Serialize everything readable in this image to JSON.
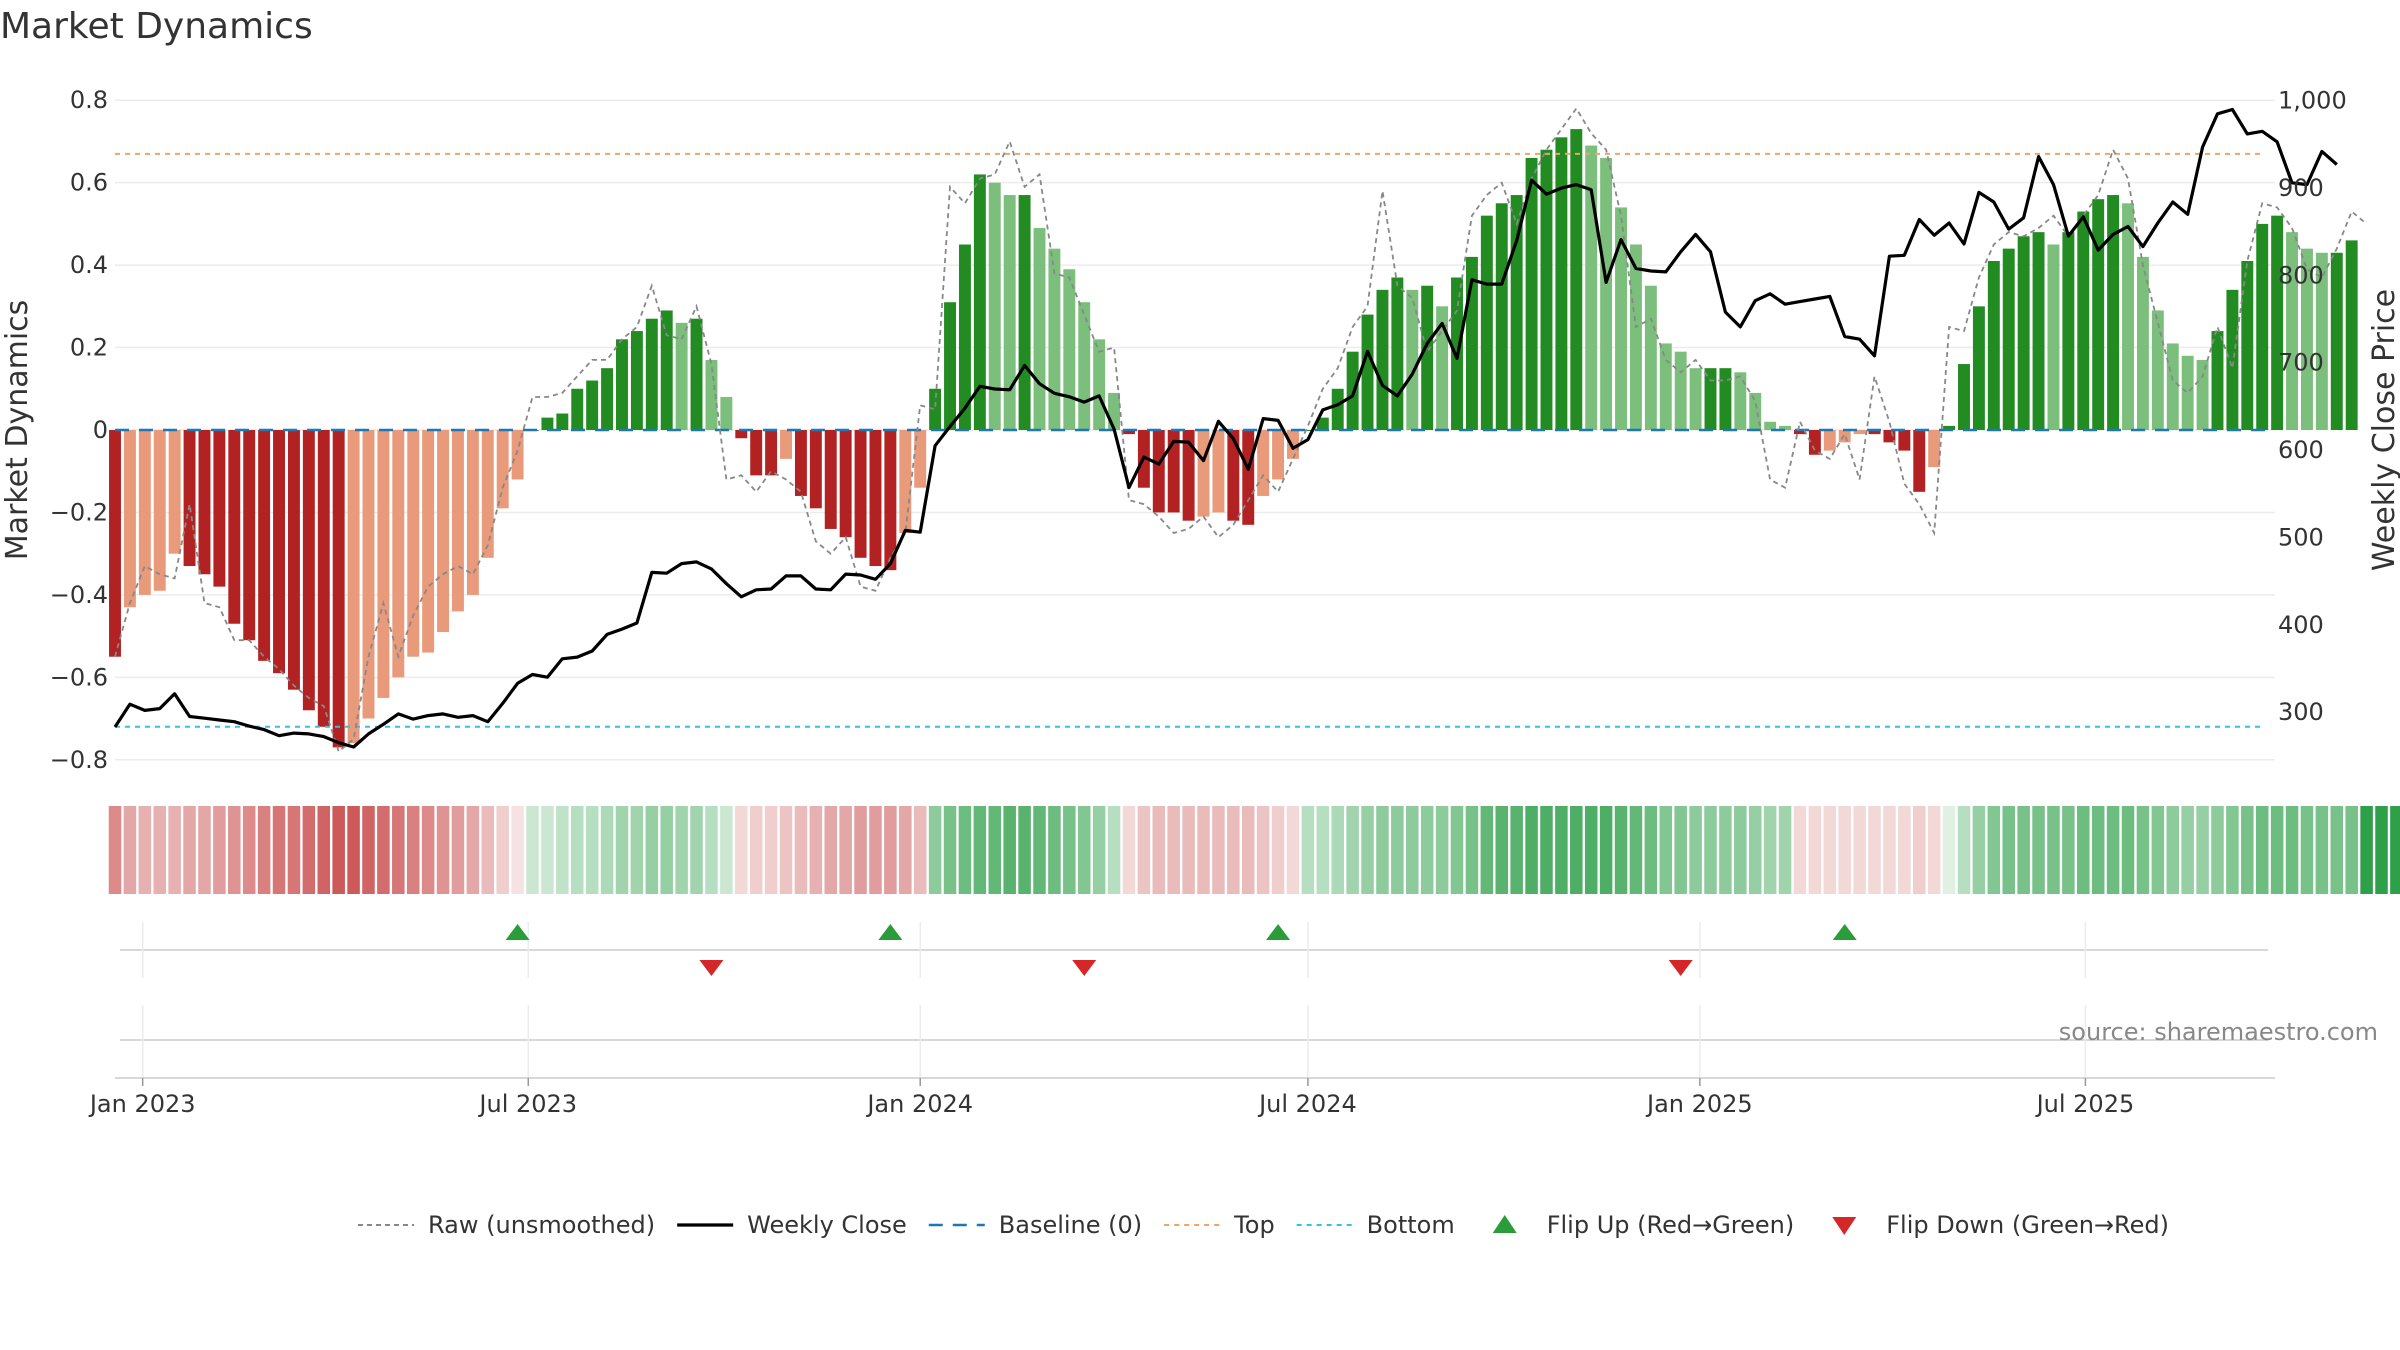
{
  "chart_data": {
    "type": "bar",
    "title": "Market Dynamics",
    "ylabel": "Market Dynamics",
    "y2label": "Weekly Close Price",
    "ylim": [
      -0.82,
      0.82
    ],
    "y2lim": [
      236,
      1010
    ],
    "x_ticks": [
      "Jan 2023",
      "Jul 2023",
      "Jan 2024",
      "Jul 2024",
      "Jan 2025",
      "Jul 2025"
    ],
    "x_tick_dates": [
      "2023-01-01",
      "2023-07-01",
      "2024-01-01",
      "2024-07-01",
      "2025-01-01",
      "2025-07-01"
    ],
    "x_start": "2022-12-19",
    "x_end": "2025-09-28",
    "y_ticks": [
      0.8,
      0.6,
      0.4,
      0.2,
      0,
      -0.2,
      -0.4,
      -0.6,
      -0.8
    ],
    "y_tick_labels": [
      "0.8",
      "0.6",
      "0.4",
      "0.2",
      "0",
      "−0.2",
      "−0.4",
      "−0.6",
      "−0.8"
    ],
    "y2_ticks": [
      1000,
      900,
      800,
      700,
      600,
      500,
      400,
      300
    ],
    "y2_tick_labels": [
      "1,000",
      "900",
      "800",
      "700",
      "600",
      "500",
      "400",
      "300"
    ],
    "top_level": 0.67,
    "bottom_level": -0.72,
    "grid": true,
    "legend_position": "bottom",
    "series": [
      {
        "name": "Raw (unsmoothed)",
        "type": "line",
        "color": "#888888"
      },
      {
        "name": "Weekly Close",
        "type": "line",
        "color": "#000000"
      },
      {
        "name": "Baseline (0)",
        "type": "line",
        "color": "#1f77b4"
      },
      {
        "name": "Top",
        "type": "line",
        "color": "#f4a261"
      },
      {
        "name": "Bottom",
        "type": "line",
        "color": "#2ec4e0"
      },
      {
        "name": "Flip Up (Red→Green)",
        "type": "marker",
        "color": "#2a9d3a"
      },
      {
        "name": "Flip Down (Green→Red)",
        "type": "marker",
        "color": "#d62728"
      }
    ],
    "weekly_start": "2022-12-19",
    "momentum": [
      -0.55,
      -0.43,
      -0.4,
      -0.39,
      -0.3,
      -0.33,
      -0.35,
      -0.38,
      -0.47,
      -0.51,
      -0.56,
      -0.59,
      -0.63,
      -0.68,
      -0.72,
      -0.77,
      -0.76,
      -0.7,
      -0.65,
      -0.6,
      -0.55,
      -0.54,
      -0.49,
      -0.44,
      -0.4,
      -0.31,
      -0.19,
      -0.12,
      0.0,
      0.03,
      0.04,
      0.1,
      0.12,
      0.15,
      0.22,
      0.24,
      0.27,
      0.29,
      0.26,
      0.27,
      0.17,
      0.08,
      -0.02,
      -0.11,
      -0.11,
      -0.07,
      -0.16,
      -0.19,
      -0.24,
      -0.26,
      -0.31,
      -0.33,
      -0.34,
      -0.25,
      -0.14,
      0.1,
      0.31,
      0.45,
      0.62,
      0.6,
      0.57,
      0.57,
      0.49,
      0.44,
      0.39,
      0.31,
      0.22,
      0.09,
      -0.01,
      -0.14,
      -0.2,
      -0.2,
      -0.22,
      -0.21,
      -0.2,
      -0.22,
      -0.23,
      -0.16,
      -0.12,
      -0.07,
      0.0,
      0.03,
      0.1,
      0.19,
      0.28,
      0.34,
      0.37,
      0.34,
      0.35,
      0.3,
      0.37,
      0.42,
      0.52,
      0.55,
      0.57,
      0.66,
      0.68,
      0.71,
      0.73,
      0.69,
      0.66,
      0.54,
      0.45,
      0.35,
      0.21,
      0.19,
      0.15,
      0.15,
      0.15,
      0.14,
      0.09,
      0.02,
      0.01,
      -0.01,
      -0.06,
      -0.05,
      -0.03,
      -0.01,
      -0.01,
      -0.03,
      -0.05,
      -0.15,
      -0.09,
      0.01,
      0.16,
      0.3,
      0.41,
      0.44,
      0.47,
      0.48,
      0.45,
      0.48,
      0.53,
      0.56,
      0.57,
      0.55,
      0.42,
      0.29,
      0.21,
      0.18,
      0.17,
      0.24,
      0.34,
      0.41,
      0.5,
      0.52,
      0.48,
      0.44,
      0.43,
      0.43,
      0.46
    ],
    "raw": [
      -0.55,
      -0.42,
      -0.33,
      -0.35,
      -0.36,
      -0.18,
      -0.42,
      -0.43,
      -0.51,
      -0.51,
      -0.55,
      -0.58,
      -0.62,
      -0.65,
      -0.67,
      -0.78,
      -0.75,
      -0.55,
      -0.42,
      -0.55,
      -0.45,
      -0.38,
      -0.35,
      -0.33,
      -0.35,
      -0.28,
      -0.14,
      -0.05,
      0.08,
      0.08,
      0.09,
      0.13,
      0.17,
      0.17,
      0.22,
      0.25,
      0.35,
      0.23,
      0.22,
      0.3,
      0.16,
      -0.12,
      -0.11,
      -0.15,
      -0.1,
      -0.12,
      -0.15,
      -0.27,
      -0.3,
      -0.26,
      -0.38,
      -0.39,
      -0.31,
      -0.25,
      0.06,
      0.05,
      0.59,
      0.55,
      0.61,
      0.62,
      0.7,
      0.59,
      0.62,
      0.38,
      0.37,
      0.28,
      0.19,
      0.2,
      -0.17,
      -0.18,
      -0.21,
      -0.25,
      -0.24,
      -0.21,
      -0.26,
      -0.23,
      -0.17,
      -0.11,
      -0.15,
      -0.07,
      0.01,
      0.1,
      0.15,
      0.25,
      0.3,
      0.58,
      0.35,
      0.32,
      0.19,
      0.24,
      0.29,
      0.52,
      0.57,
      0.6,
      0.5,
      0.61,
      0.68,
      0.73,
      0.78,
      0.72,
      0.68,
      0.52,
      0.25,
      0.27,
      0.17,
      0.14,
      0.17,
      0.12,
      0.12,
      0.13,
      0.07,
      -0.12,
      -0.14,
      0.02,
      -0.05,
      -0.07,
      -0.01,
      -0.12,
      0.13,
      0.02,
      -0.13,
      -0.18,
      -0.25,
      0.25,
      0.24,
      0.37,
      0.45,
      0.48,
      0.47,
      0.49,
      0.52,
      0.47,
      0.52,
      0.57,
      0.68,
      0.61,
      0.4,
      0.26,
      0.12,
      0.09,
      0.13,
      0.25,
      0.15,
      0.41,
      0.55,
      0.54,
      0.49,
      0.39,
      0.37,
      0.44,
      0.53,
      0.5
    ],
    "weekly_close": [
      283,
      309,
      302,
      304,
      321,
      295,
      293,
      291,
      289,
      284,
      280,
      273,
      276,
      275,
      272,
      265,
      260,
      275,
      286,
      298,
      292,
      296,
      298,
      294,
      296,
      289,
      310,
      333,
      343,
      340,
      361,
      363,
      370,
      389,
      395,
      402,
      460,
      459,
      470,
      472,
      464,
      447,
      432,
      440,
      441,
      456,
      456,
      441,
      440,
      458,
      457,
      452,
      470,
      508,
      506,
      605,
      627,
      648,
      673,
      670,
      669,
      697,
      676,
      665,
      661,
      655,
      662,
      624,
      557,
      592,
      584,
      610,
      609,
      588,
      633,
      613,
      578,
      636,
      634,
      602,
      612,
      646,
      652,
      662,
      713,
      674,
      662,
      687,
      722,
      745,
      705,
      795,
      790,
      790,
      840,
      909,
      893,
      900,
      904,
      898,
      792,
      841,
      808,
      805,
      804,
      827,
      847,
      827,
      758,
      741,
      771,
      779,
      767,
      770,
      773,
      776,
      730,
      727,
      708,
      822,
      823,
      864,
      846,
      860,
      836,
      895,
      884,
      853,
      866,
      936,
      904,
      845,
      867,
      829,
      847,
      856,
      833,
      860,
      884,
      870,
      947,
      985,
      990,
      962,
      965,
      953,
      906,
      904,
      942,
      927
    ]
  },
  "bands": {
    "colors": [
      "#c43c3c",
      "#c43c3c",
      "#c43c3c",
      "#c43c3c",
      "#c43c3c",
      "#c43c3c",
      "#c43c3c",
      "#c43c3c",
      "#c43c3c",
      "#c43c3c",
      "#c43c3c",
      "#c43c3c",
      "#c43c3c",
      "#c43c3c",
      "#c43c3c",
      "#c43c3c",
      "#c43c3c",
      "#c43c3c",
      "#c43c3c",
      "#c43c3c",
      "#c43c3c",
      "#c43c3c",
      "#c43c3c",
      "#c43c3c",
      "#c43c3c",
      "#c43c3c",
      "#c43c3c",
      "#c43c3c",
      "#2fa04a",
      "#2fa04a",
      "#2fa04a",
      "#2fa04a",
      "#2fa04a",
      "#2fa04a",
      "#2fa04a",
      "#2fa04a",
      "#2fa04a",
      "#2fa04a",
      "#2fa04a",
      "#2fa04a",
      "#2fa04a",
      "#2fa04a",
      "#c43c3c",
      "#c43c3c",
      "#c43c3c",
      "#c43c3c",
      "#c43c3c",
      "#c43c3c",
      "#c43c3c",
      "#c43c3c",
      "#c43c3c",
      "#c43c3c",
      "#c43c3c",
      "#c43c3c",
      "#c43c3c",
      "#2fa04a",
      "#2fa04a",
      "#2fa04a",
      "#2fa04a",
      "#2fa04a",
      "#2fa04a",
      "#2fa04a",
      "#2fa04a",
      "#2fa04a",
      "#2fa04a",
      "#2fa04a",
      "#2fa04a",
      "#2fa04a",
      "#c43c3c",
      "#c43c3c",
      "#c43c3c",
      "#c43c3c",
      "#c43c3c",
      "#c43c3c",
      "#c43c3c",
      "#c43c3c",
      "#c43c3c",
      "#c43c3c",
      "#c43c3c",
      "#c43c3c",
      "#2fa04a",
      "#2fa04a",
      "#2fa04a",
      "#2fa04a",
      "#2fa04a",
      "#2fa04a",
      "#2fa04a",
      "#2fa04a",
      "#2fa04a",
      "#2fa04a",
      "#2fa04a",
      "#2fa04a",
      "#2fa04a",
      "#2fa04a",
      "#2fa04a",
      "#2fa04a",
      "#2fa04a",
      "#2fa04a",
      "#2fa04a",
      "#2fa04a",
      "#2fa04a",
      "#2fa04a",
      "#2fa04a",
      "#2fa04a",
      "#2fa04a",
      "#2fa04a",
      "#2fa04a",
      "#2fa04a",
      "#2fa04a",
      "#2fa04a",
      "#2fa04a",
      "#2fa04a",
      "#2fa04a",
      "#c43c3c",
      "#c43c3c",
      "#c43c3c",
      "#c43c3c",
      "#c43c3c",
      "#c43c3c",
      "#c43c3c",
      "#c43c3c",
      "#c43c3c",
      "#c43c3c",
      "#2fa04a",
      "#2fa04a",
      "#2fa04a",
      "#2fa04a",
      "#2fa04a",
      "#2fa04a",
      "#2fa04a",
      "#2fa04a",
      "#2fa04a",
      "#2fa04a",
      "#2fa04a",
      "#2fa04a",
      "#2fa04a",
      "#2fa04a",
      "#2fa04a",
      "#2fa04a",
      "#2fa04a",
      "#2fa04a",
      "#2fa04a",
      "#2fa04a",
      "#2fa04a",
      "#2fa04a",
      "#2fa04a",
      "#2fa04a",
      "#2fa04a",
      "#2fa04a",
      "#2fa04a",
      "#2fa04a",
      "#2fa04a",
      "#2fa04a",
      "#2fa04a"
    ],
    "opacity": [
      0.6,
      0.45,
      0.4,
      0.4,
      0.4,
      0.45,
      0.45,
      0.5,
      0.55,
      0.6,
      0.65,
      0.7,
      0.7,
      0.75,
      0.8,
      0.85,
      0.85,
      0.8,
      0.75,
      0.7,
      0.65,
      0.6,
      0.55,
      0.5,
      0.45,
      0.35,
      0.25,
      0.15,
      0.25,
      0.25,
      0.3,
      0.35,
      0.35,
      0.4,
      0.45,
      0.45,
      0.5,
      0.5,
      0.45,
      0.45,
      0.35,
      0.25,
      0.2,
      0.25,
      0.25,
      0.3,
      0.35,
      0.4,
      0.45,
      0.45,
      0.5,
      0.5,
      0.5,
      0.45,
      0.35,
      0.55,
      0.65,
      0.7,
      0.75,
      0.75,
      0.8,
      0.8,
      0.75,
      0.7,
      0.65,
      0.6,
      0.5,
      0.35,
      0.2,
      0.3,
      0.35,
      0.35,
      0.35,
      0.35,
      0.35,
      0.35,
      0.35,
      0.3,
      0.25,
      0.2,
      0.35,
      0.35,
      0.4,
      0.45,
      0.5,
      0.55,
      0.55,
      0.55,
      0.55,
      0.55,
      0.6,
      0.65,
      0.75,
      0.8,
      0.8,
      0.85,
      0.85,
      0.85,
      0.85,
      0.85,
      0.85,
      0.8,
      0.75,
      0.7,
      0.6,
      0.6,
      0.55,
      0.55,
      0.55,
      0.55,
      0.5,
      0.45,
      0.45,
      0.2,
      0.2,
      0.2,
      0.2,
      0.2,
      0.2,
      0.2,
      0.2,
      0.25,
      0.2,
      0.15,
      0.35,
      0.5,
      0.6,
      0.65,
      0.65,
      0.65,
      0.65,
      0.65,
      0.7,
      0.7,
      0.7,
      0.7,
      0.65,
      0.6,
      0.55,
      0.5,
      0.5,
      0.55,
      0.6,
      0.65,
      0.7,
      0.7,
      0.7,
      0.65,
      0.65,
      0.65,
      0.65
    ]
  },
  "flips": {
    "up": [
      "2023-06-26",
      "2023-12-18",
      "2024-06-17",
      "2025-03-10"
    ],
    "down": [
      "2023-09-25",
      "2024-03-18",
      "2024-12-23"
    ]
  },
  "source_text": "source: sharemaestro.com"
}
